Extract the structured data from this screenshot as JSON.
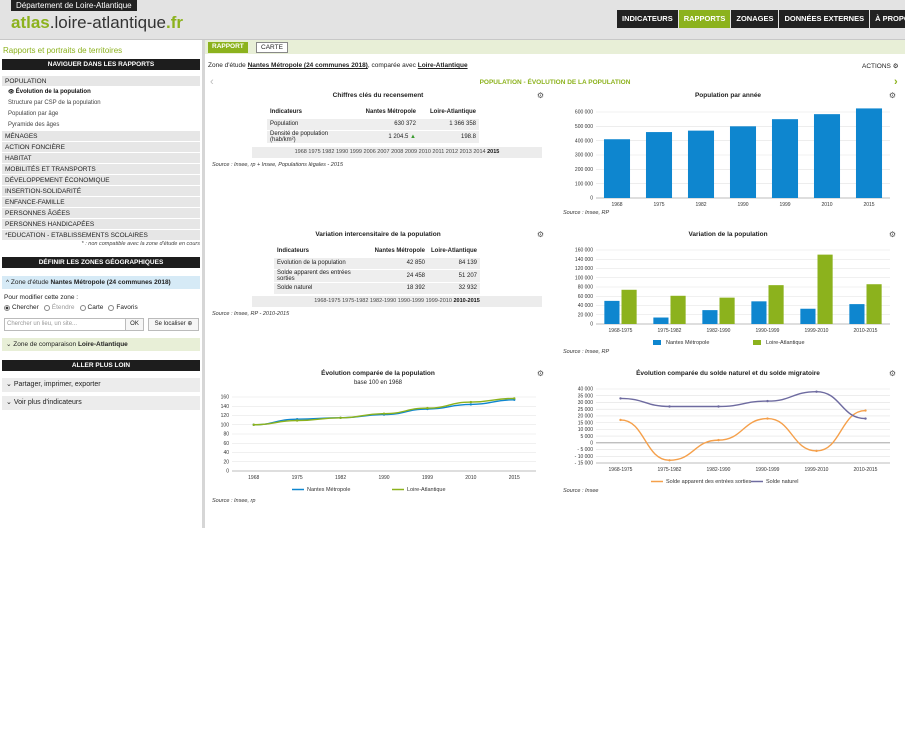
{
  "header": {
    "dept_label": "Département de Loire-Atlantique",
    "logo_part1": "atlas",
    "logo_part2": ".loire-atlantique",
    "logo_part3": ".fr",
    "nav": [
      "INDICATEURS",
      "RAPPORTS",
      "ZONAGES",
      "DONNÉES EXTERNES",
      "À PROPOS..."
    ],
    "active_nav": "RAPPORTS",
    "user_icon": "user-icon"
  },
  "left": {
    "title": "Rapports et portraits de territoires",
    "nav_reports_title": "NAVIGUER DANS LES RAPPORTS",
    "reports": [
      {
        "label": "POPULATION",
        "type": "section"
      },
      {
        "label": "Évolution de la population",
        "type": "sub",
        "current": true
      },
      {
        "label": "Structure par CSP de la population",
        "type": "sub"
      },
      {
        "label": "Population par âge",
        "type": "sub"
      },
      {
        "label": "Pyramide des âges",
        "type": "sub"
      },
      {
        "label": "MÉNAGES",
        "type": "section"
      },
      {
        "label": "ACTION FONCIÈRE",
        "type": "section"
      },
      {
        "label": "HABITAT",
        "type": "section"
      },
      {
        "label": "MOBILITÉS ET TRANSPORTS",
        "type": "section"
      },
      {
        "label": "DÉVELOPPEMENT ÉCONOMIQUE",
        "type": "section"
      },
      {
        "label": "INSERTION-SOLIDARITÉ",
        "type": "section"
      },
      {
        "label": "ENFANCE-FAMILLE",
        "type": "section"
      },
      {
        "label": "PERSONNES ÂGÉES",
        "type": "section"
      },
      {
        "label": "PERSONNES HANDICAPÉES",
        "type": "section"
      },
      {
        "label": "*EDUCATION - ETABLISSEMENTS SCOLAIRES",
        "type": "section"
      }
    ],
    "compat_note": "* : non compatible avec la zone d'étude en cours",
    "zones_title": "DÉFINIR LES ZONES GÉOGRAPHIQUES",
    "zone_etude_label": "Zone d'étude",
    "zone_etude_value": "Nantes Métropole (24 communes 2018)",
    "modify_label": "Pour modifier cette zone :",
    "modify_options": [
      "Chercher",
      "Étendre",
      "Carte",
      "Favoris"
    ],
    "modify_selected": "Chercher",
    "search_placeholder": "Chercher un lieu, un site...",
    "ok_label": "OK",
    "locate_label": "Se localiser",
    "zone_comp_label": "Zone de comparaison",
    "zone_comp_value": "Loire-Atlantique",
    "further_title": "ALLER PLUS LOIN",
    "share_label": "Partager, imprimer, exporter",
    "more_label": "Voir plus d'indicateurs"
  },
  "main": {
    "tabs": [
      "RAPPORT",
      "CARTE"
    ],
    "study_prefix": "Zone d'étude",
    "study_zone": "Nantes Métropole (24 communes 2018)",
    "study_mid": ", comparée avec",
    "study_comp": "Loire-Atlantique",
    "actions_label": "ACTIONS",
    "section_title": "POPULATION - ÉVOLUTION DE LA POPULATION",
    "key_figures": {
      "title": "Chiffres clés du recensement",
      "headers": [
        "Indicateurs",
        "Nantes Métropole",
        "Loire-Atlantique"
      ],
      "rows": [
        [
          "Population",
          "630 372",
          "1 366 358"
        ],
        [
          "Densité de population (hab/km²)",
          "1 204.5",
          "198.8"
        ]
      ],
      "trend_icon": "triangle-up-icon",
      "years": [
        "1968",
        "1975",
        "1982",
        "1990",
        "1999",
        "2006",
        "2007",
        "2008",
        "2009",
        "2010",
        "2011",
        "2012",
        "2013",
        "2014",
        "2015"
      ],
      "year_selected": "2015",
      "source": "Source : Insee, rp + Insee, Populations légales - 2015"
    },
    "intercensal": {
      "title": "Variation intercensitaire de la population",
      "headers": [
        "Indicateurs",
        "Nantes Métropole",
        "Loire-Atlantique"
      ],
      "rows": [
        [
          "Evolution de la population",
          "42 850",
          "84 139"
        ],
        [
          "Solde apparent des entrées sorties",
          "24 458",
          "51 207"
        ],
        [
          "Solde naturel",
          "18 392",
          "32 932"
        ]
      ],
      "periods": [
        "1968-1975",
        "1975-1982",
        "1982-1990",
        "1990-1999",
        "1999-2010",
        "2010-2015"
      ],
      "period_selected": "2010-2015",
      "source": "Source : Insee, RP - 2010-2015"
    },
    "chart_sources": {
      "pop": "Source : Insee, RP",
      "var": "Source : Insee, RP",
      "compare": "Source : Insee, rp",
      "solde": "Source : Insee"
    }
  },
  "chart_data": [
    {
      "id": "pop",
      "type": "bar",
      "title": "Population par année",
      "categories": [
        "1968",
        "1975",
        "1982",
        "1990",
        "1999",
        "2010",
        "2015"
      ],
      "series": [
        {
          "values": [
            410000,
            460000,
            470000,
            500000,
            550000,
            585000,
            625000
          ]
        }
      ],
      "ylim": [
        0,
        600000
      ],
      "yticks": [
        "0",
        "100 000",
        "200 000",
        "300 000",
        "400 000",
        "500 000",
        "600 000"
      ],
      "colors": [
        "#0e86cf"
      ],
      "grid": true
    },
    {
      "id": "var",
      "type": "bar",
      "title": "Variation de la population",
      "categories": [
        "1968-1975",
        "1975-1982",
        "1982-1990",
        "1990-1999",
        "1999-2010",
        "2010-2015"
      ],
      "series": [
        {
          "name": "Nantes Métropole",
          "values": [
            50000,
            14000,
            30000,
            49000,
            33000,
            43000
          ]
        },
        {
          "name": "Loire-Atlantique",
          "values": [
            74000,
            61000,
            57000,
            84000,
            150000,
            86000
          ]
        }
      ],
      "ylim": [
        0,
        160000
      ],
      "yticks": [
        "0",
        "20 000",
        "40 000",
        "60 000",
        "80 000",
        "100 000",
        "120 000",
        "140 000",
        "160 000"
      ],
      "colors": [
        "#0e86cf",
        "#8cb21d"
      ],
      "legend": "bottom",
      "grid": true
    },
    {
      "id": "compare",
      "type": "line",
      "title": "Évolution comparée de la population",
      "subtitle": "base 100 en 1968",
      "categories": [
        "1968",
        "1975",
        "1982",
        "1990",
        "1999",
        "2010",
        "2015"
      ],
      "series": [
        {
          "name": "Nantes Métropole",
          "values": [
            100,
            112,
            115,
            122,
            134,
            144,
            154
          ]
        },
        {
          "name": "Loire-Atlantique",
          "values": [
            100,
            109,
            115,
            124,
            136,
            149,
            157
          ]
        }
      ],
      "ylim": [
        0,
        160
      ],
      "yticks": [
        "0",
        "20",
        "40",
        "60",
        "80",
        "100",
        "120",
        "140",
        "160"
      ],
      "colors": [
        "#0e86cf",
        "#8cb21d"
      ],
      "legend": "bottom",
      "grid": true
    },
    {
      "id": "solde",
      "type": "line",
      "title": "Évolution comparée du solde naturel et du solde migratoire",
      "categories": [
        "1968-1975",
        "1975-1982",
        "1982-1990",
        "1990-1999",
        "1999-2010",
        "2010-2015"
      ],
      "series": [
        {
          "name": "Solde apparent des entrées sorties",
          "values": [
            17000,
            -13000,
            2000,
            18000,
            -6000,
            24000
          ]
        },
        {
          "name": "Solde naturel",
          "values": [
            33000,
            27000,
            27000,
            31000,
            38000,
            18000
          ]
        }
      ],
      "ylim": [
        -15000,
        40000
      ],
      "yticks": [
        "- 15 000",
        "- 10 000",
        "- 5 000",
        "0",
        "5 000",
        "10 000",
        "15 000",
        "20 000",
        "25 000",
        "30 000",
        "35 000",
        "40 000"
      ],
      "colors": [
        "#f5a04b",
        "#6e6ba0"
      ],
      "legend": "bottom",
      "grid": true
    }
  ]
}
